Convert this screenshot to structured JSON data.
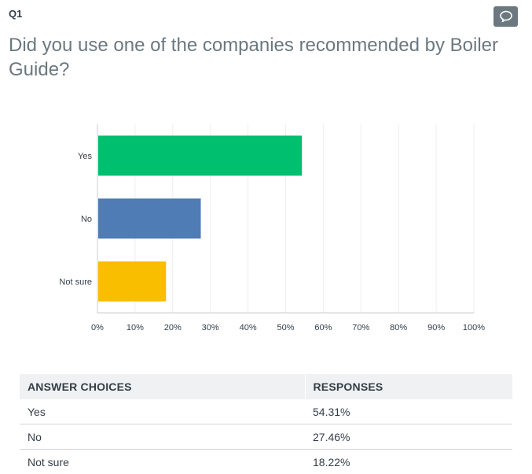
{
  "question": {
    "number": "Q1",
    "text": "Did you use one of the companies recommended by Boiler Guide?",
    "comment_icon": "speech-bubble-icon"
  },
  "chart_data": {
    "type": "bar",
    "orientation": "horizontal",
    "categories": [
      "Yes",
      "No",
      "Not sure"
    ],
    "values": [
      54.31,
      27.46,
      18.22
    ],
    "colors": [
      "#00bf6f",
      "#507cb6",
      "#f9be00"
    ],
    "xlim": [
      0,
      100
    ],
    "xticks": [
      "0%",
      "10%",
      "20%",
      "30%",
      "40%",
      "50%",
      "60%",
      "70%",
      "80%",
      "90%",
      "100%"
    ],
    "grid": true,
    "legend": "none"
  },
  "table": {
    "headers": [
      "ANSWER CHOICES",
      "RESPONSES"
    ],
    "rows": [
      {
        "choice": "Yes",
        "response": "54.31%"
      },
      {
        "choice": "No",
        "response": "27.46%"
      },
      {
        "choice": "Not sure",
        "response": "18.22%"
      }
    ]
  }
}
